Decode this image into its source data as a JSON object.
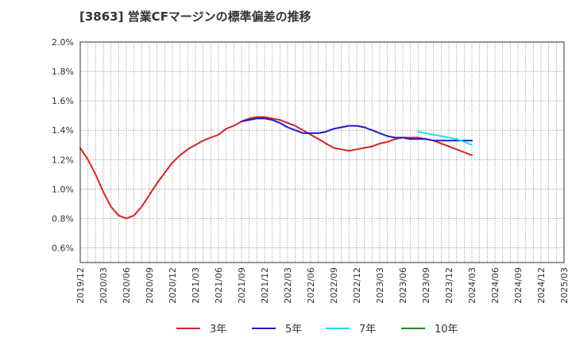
{
  "chart_data": {
    "type": "line",
    "title": "[3863]  営業CFマージンの標準偏差の推移",
    "xlabel": "",
    "ylabel": "",
    "categories": [
      "2019/12",
      "2020/03",
      "2020/06",
      "2020/09",
      "2020/12",
      "2021/03",
      "2021/06",
      "2021/09",
      "2021/12",
      "2022/03",
      "2022/06",
      "2022/09",
      "2022/12",
      "2023/03",
      "2023/06",
      "2023/09",
      "2023/12",
      "2024/03",
      "2024/06",
      "2024/09",
      "2024/12",
      "2025/03"
    ],
    "yticks": [
      "2.0%",
      "1.8%",
      "1.6%",
      "1.4%",
      "1.2%",
      "1.0%",
      "0.8%",
      "0.6%"
    ],
    "ylim": [
      0.5,
      2.0
    ],
    "y_unit": "%",
    "grid": true,
    "legend_position": "bottom",
    "series": [
      {
        "name": "3年",
        "color": "#dd2222",
        "x": [
          "2019/12",
          "2020/01",
          "2020/02",
          "2020/03",
          "2020/04",
          "2020/05",
          "2020/06",
          "2020/07",
          "2020/08",
          "2020/09",
          "2020/10",
          "2020/11",
          "2020/12",
          "2021/01",
          "2021/02",
          "2021/03",
          "2021/04",
          "2021/05",
          "2021/06",
          "2021/07",
          "2021/08",
          "2021/09",
          "2021/10",
          "2021/11",
          "2021/12",
          "2022/01",
          "2022/02",
          "2022/03",
          "2022/04",
          "2022/05",
          "2022/06",
          "2022/07",
          "2022/08",
          "2022/09",
          "2022/10",
          "2022/11",
          "2022/12",
          "2023/01",
          "2023/02",
          "2023/03",
          "2023/04",
          "2023/05",
          "2023/06",
          "2023/07",
          "2023/08",
          "2023/09",
          "2023/10",
          "2023/11",
          "2023/12",
          "2024/01",
          "2024/02",
          "2024/03"
        ],
        "values": [
          1.28,
          1.2,
          1.1,
          0.98,
          0.88,
          0.82,
          0.8,
          0.82,
          0.88,
          0.96,
          1.04,
          1.11,
          1.18,
          1.23,
          1.27,
          1.3,
          1.33,
          1.35,
          1.37,
          1.41,
          1.43,
          1.46,
          1.48,
          1.49,
          1.49,
          1.48,
          1.47,
          1.45,
          1.43,
          1.4,
          1.37,
          1.34,
          1.31,
          1.28,
          1.27,
          1.26,
          1.27,
          1.28,
          1.29,
          1.31,
          1.32,
          1.34,
          1.35,
          1.35,
          1.35,
          1.34,
          1.33,
          1.31,
          1.29,
          1.27,
          1.25,
          1.23
        ]
      },
      {
        "name": "5年",
        "color": "#1a1acc",
        "x": [
          "2021/09",
          "2021/10",
          "2021/11",
          "2021/12",
          "2022/01",
          "2022/02",
          "2022/03",
          "2022/04",
          "2022/05",
          "2022/06",
          "2022/07",
          "2022/08",
          "2022/09",
          "2022/10",
          "2022/11",
          "2022/12",
          "2023/01",
          "2023/02",
          "2023/03",
          "2023/04",
          "2023/05",
          "2023/06",
          "2023/07",
          "2023/08",
          "2023/09",
          "2023/10",
          "2023/11",
          "2023/12",
          "2024/01",
          "2024/02",
          "2024/03"
        ],
        "values": [
          1.46,
          1.47,
          1.48,
          1.48,
          1.47,
          1.45,
          1.42,
          1.4,
          1.38,
          1.38,
          1.38,
          1.39,
          1.41,
          1.42,
          1.43,
          1.43,
          1.42,
          1.4,
          1.38,
          1.36,
          1.35,
          1.35,
          1.34,
          1.34,
          1.34,
          1.33,
          1.33,
          1.33,
          1.33,
          1.33,
          1.33
        ]
      },
      {
        "name": "7年",
        "color": "#22ddee",
        "x": [
          "2023/08",
          "2023/09",
          "2023/10",
          "2023/11",
          "2023/12",
          "2024/01",
          "2024/02",
          "2024/03"
        ],
        "values": [
          1.39,
          1.38,
          1.37,
          1.36,
          1.35,
          1.34,
          1.32,
          1.3
        ]
      },
      {
        "name": "10年",
        "color": "#228822",
        "x": [],
        "values": []
      }
    ]
  }
}
